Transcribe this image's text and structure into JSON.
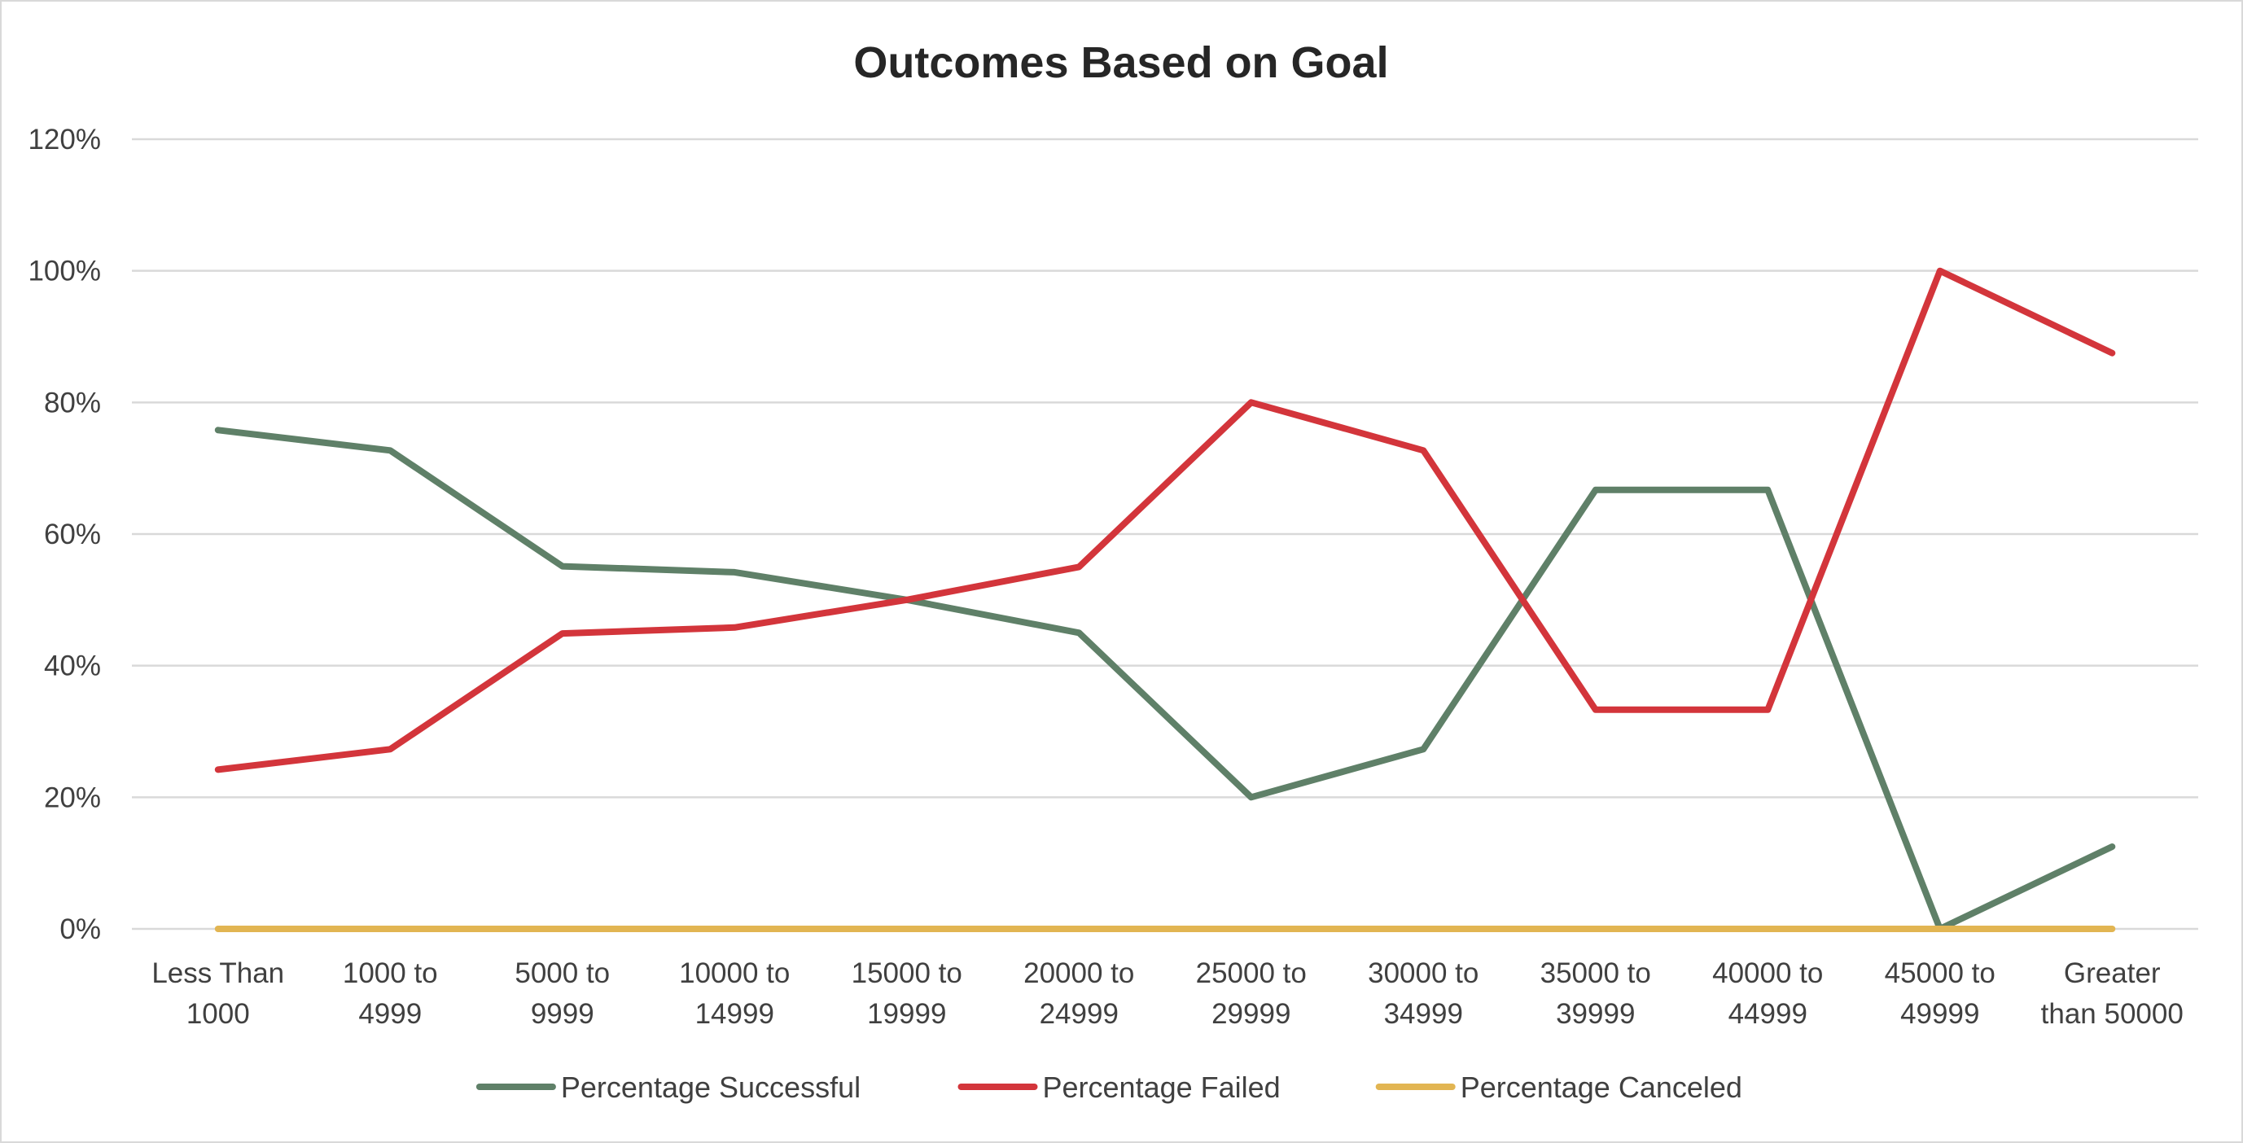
{
  "chart_data": {
    "type": "line",
    "title": "Outcomes Based on Goal",
    "xlabel": "",
    "ylabel": "",
    "categories": [
      [
        "Less Than",
        "1000"
      ],
      [
        "1000 to",
        "4999"
      ],
      [
        "5000 to",
        "9999"
      ],
      [
        "10000 to",
        "14999"
      ],
      [
        "15000 to",
        "19999"
      ],
      [
        "20000 to",
        "24999"
      ],
      [
        "25000 to",
        "29999"
      ],
      [
        "30000 to",
        "34999"
      ],
      [
        "35000 to",
        "39999"
      ],
      [
        "40000 to",
        "44999"
      ],
      [
        "45000 to",
        "49999"
      ],
      [
        "Greater",
        "than 50000"
      ]
    ],
    "ylim": [
      0,
      120
    ],
    "yticks": [
      0,
      20,
      40,
      60,
      80,
      100,
      120
    ],
    "ytick_suffix": "%",
    "grid": true,
    "legend_position": "bottom",
    "series": [
      {
        "name": "Percentage Successful",
        "color": "#5f8068",
        "values": [
          75.8,
          72.7,
          55.1,
          54.2,
          50,
          45,
          20,
          27.3,
          66.7,
          66.7,
          0,
          12.5
        ]
      },
      {
        "name": "Percentage Failed",
        "color": "#d3353b",
        "values": [
          24.2,
          27.3,
          44.9,
          45.8,
          50,
          55,
          80,
          72.7,
          33.3,
          33.3,
          100,
          87.5
        ]
      },
      {
        "name": "Percentage Canceled",
        "color": "#e2b552",
        "values": [
          0,
          0,
          0,
          0,
          0,
          0,
          0,
          0,
          0,
          0,
          0,
          0
        ]
      }
    ]
  }
}
